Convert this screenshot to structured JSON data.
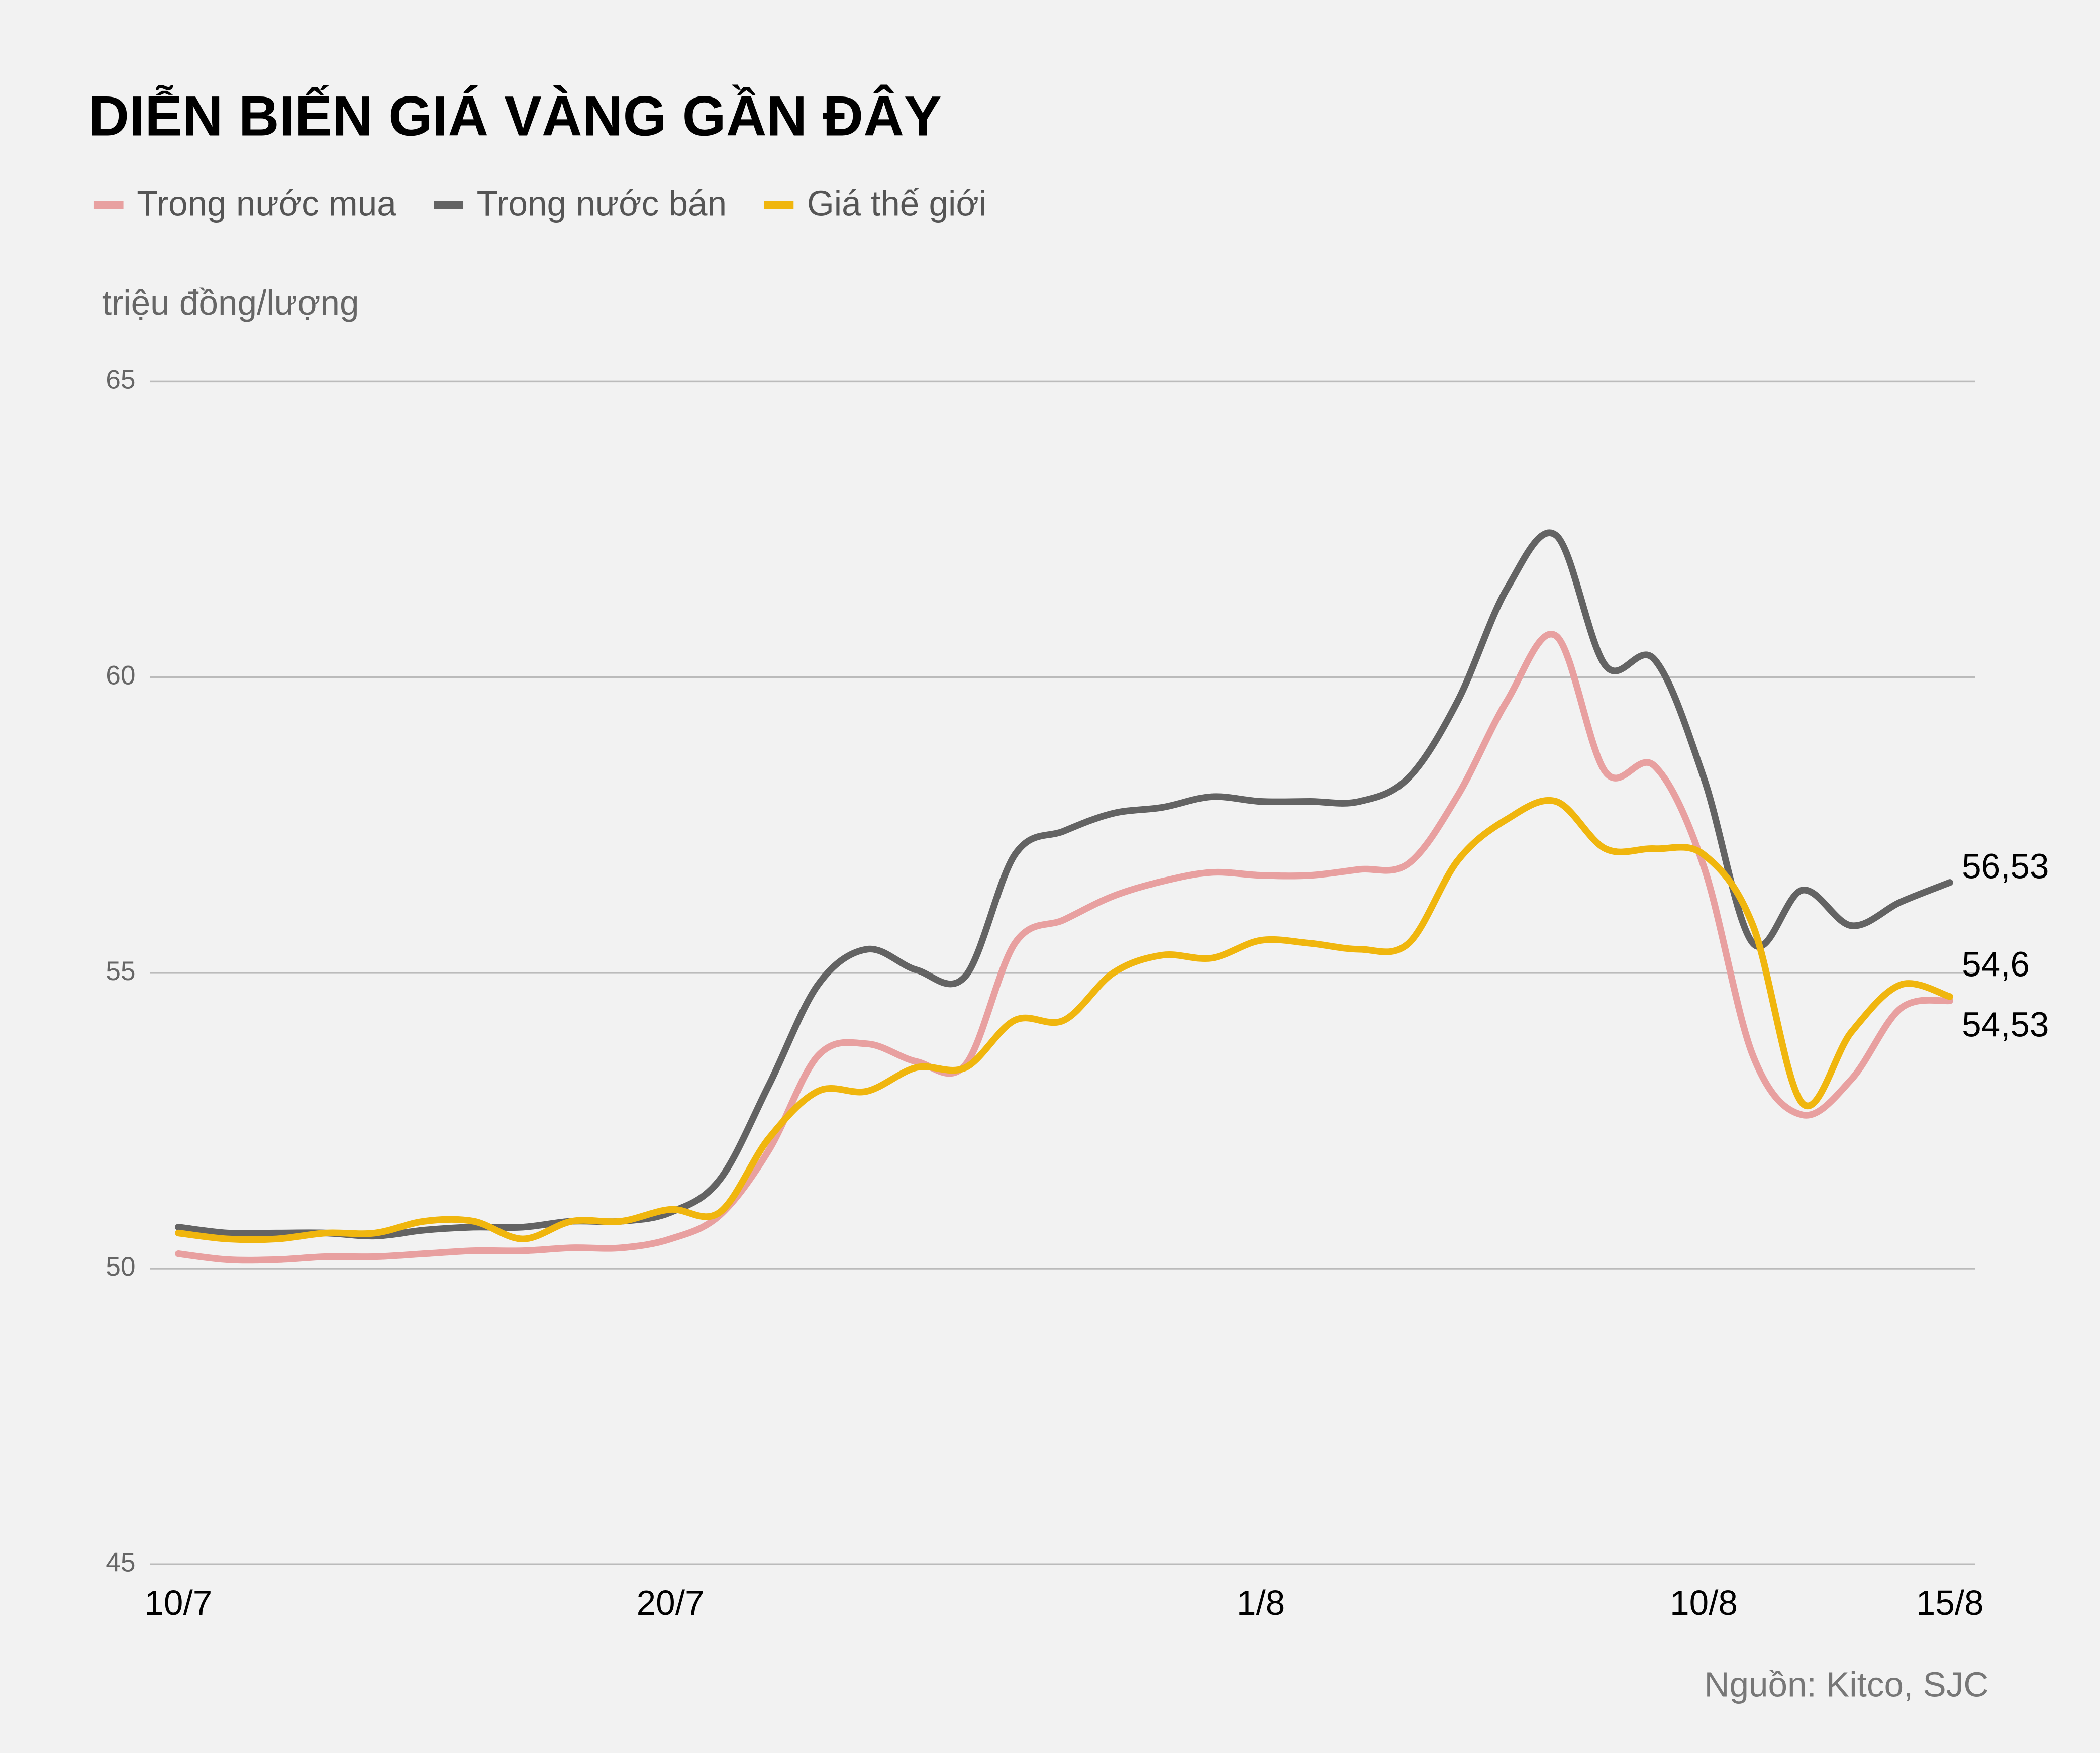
{
  "chart_data": {
    "type": "line",
    "title": "DIỄN BIẾN GIÁ VÀNG GẦN ĐÂY",
    "y_label": "triệu đồng/lượng",
    "source": "Nguồn: Kitco, SJC",
    "categories": [
      "10/7",
      null,
      null,
      null,
      null,
      null,
      null,
      null,
      null,
      null,
      "20/7",
      null,
      null,
      null,
      null,
      null,
      null,
      null,
      null,
      null,
      null,
      null,
      "1/8",
      null,
      null,
      null,
      null,
      null,
      null,
      null,
      null,
      "10/8",
      null,
      null,
      null,
      null,
      "15/8"
    ],
    "ylim": [
      45,
      65
    ],
    "yticks": [
      45,
      50,
      55,
      60,
      65
    ],
    "grid": true,
    "series": [
      {
        "name": "Trong nước mua",
        "color": "#e8a0a0",
        "values": [
          50.25,
          50.15,
          50.15,
          50.2,
          50.2,
          50.25,
          50.3,
          50.3,
          50.35,
          50.35,
          50.5,
          50.9,
          52.0,
          53.6,
          53.8,
          53.5,
          53.45,
          55.5,
          55.9,
          56.3,
          56.55,
          56.7,
          56.65,
          56.65,
          56.75,
          56.85,
          58.0,
          59.6,
          60.7,
          58.4,
          58.5,
          56.8,
          53.6,
          52.6,
          53.2,
          54.4,
          54.53
        ],
        "value_labels": [
          null,
          null,
          null,
          null,
          null,
          null,
          null,
          null,
          null,
          null,
          null,
          null,
          null,
          null,
          null,
          null,
          null,
          null,
          null,
          null,
          null,
          null,
          null,
          null,
          null,
          null,
          null,
          null,
          null,
          null,
          null,
          null,
          null,
          null,
          null,
          null,
          "54,53"
        ]
      },
      {
        "name": "Trong nước bán",
        "color": "#636363",
        "values": [
          50.7,
          50.6,
          50.6,
          50.6,
          50.55,
          50.65,
          50.7,
          50.7,
          50.8,
          50.8,
          50.95,
          51.5,
          53.1,
          54.8,
          55.4,
          55.05,
          54.95,
          57.0,
          57.4,
          57.7,
          57.8,
          57.98,
          57.9,
          57.9,
          57.9,
          58.3,
          59.6,
          61.5,
          62.4,
          60.2,
          60.3,
          58.3,
          55.5,
          56.4,
          55.8,
          56.2,
          56.53
        ],
        "value_labels": [
          null,
          null,
          null,
          null,
          null,
          null,
          null,
          null,
          null,
          null,
          null,
          null,
          null,
          null,
          null,
          null,
          null,
          null,
          null,
          null,
          null,
          null,
          null,
          null,
          null,
          null,
          null,
          null,
          null,
          null,
          null,
          null,
          null,
          null,
          null,
          null,
          "56,53"
        ]
      },
      {
        "name": "Giá thế giới",
        "color": "#f0b60e",
        "values": [
          50.6,
          50.5,
          50.5,
          50.6,
          50.6,
          50.8,
          50.8,
          50.5,
          50.8,
          50.8,
          51.0,
          50.95,
          52.2,
          53.0,
          53.0,
          53.4,
          53.4,
          54.2,
          54.2,
          55.0,
          55.3,
          55.25,
          55.55,
          55.5,
          55.4,
          55.5,
          56.9,
          57.6,
          57.9,
          57.1,
          57.1,
          57.0,
          55.8,
          52.8,
          54.0,
          54.8,
          54.6
        ],
        "value_labels": [
          null,
          null,
          null,
          null,
          null,
          null,
          null,
          null,
          null,
          null,
          null,
          null,
          null,
          null,
          null,
          null,
          null,
          null,
          null,
          null,
          null,
          null,
          null,
          null,
          null,
          null,
          null,
          null,
          null,
          null,
          null,
          null,
          null,
          null,
          null,
          null,
          "54,6"
        ]
      }
    ]
  }
}
